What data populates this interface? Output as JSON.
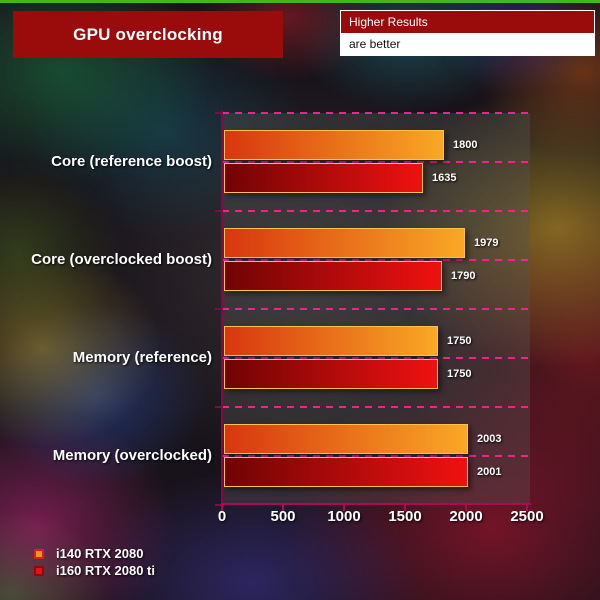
{
  "header": {
    "title": "GPU overclocking",
    "note_line1": "Higher Results",
    "note_line2": "are better"
  },
  "chart_data": {
    "type": "bar",
    "orientation": "horizontal",
    "title": "GPU overclocking",
    "note": "Higher Results are better",
    "categories": [
      "Core (reference boost)",
      "Core (overclocked boost)",
      "Memory (reference)",
      "Memory (overclocked)"
    ],
    "series": [
      {
        "name": "i140 RTX 2080",
        "values": [
          1800,
          1979,
          1750,
          2003
        ]
      },
      {
        "name": "i160 RTX 2080 ti",
        "values": [
          1635,
          1790,
          1750,
          2001
        ]
      }
    ],
    "x_tick_labels": [
      "0",
      "500",
      "1000",
      "1500",
      "2000",
      "2500"
    ],
    "xlim": [
      0,
      2500
    ],
    "grid": "dashed horizontal group lines",
    "legend_position": "bottom-left",
    "value_labels": "outside right of each bar"
  },
  "colors": {
    "accent_green": "#46b41e",
    "header_red": "#9a0b0b",
    "axis_magenta_left": "#84094a",
    "axis_magenta_bottom": "#ad0a52",
    "gridline_pink": "#f0238c",
    "bar1_start": "#d8370f",
    "bar1_end": "#f9a825",
    "bar2_start": "#700404",
    "bar2_end": "#f01111",
    "bar_border": "#ffc04d",
    "legend_swatch1_fill": "#f7941e",
    "legend_swatch1_border": "#d42310",
    "legend_swatch2_fill": "#e51212",
    "legend_swatch2_border": "#8e0b0b"
  }
}
